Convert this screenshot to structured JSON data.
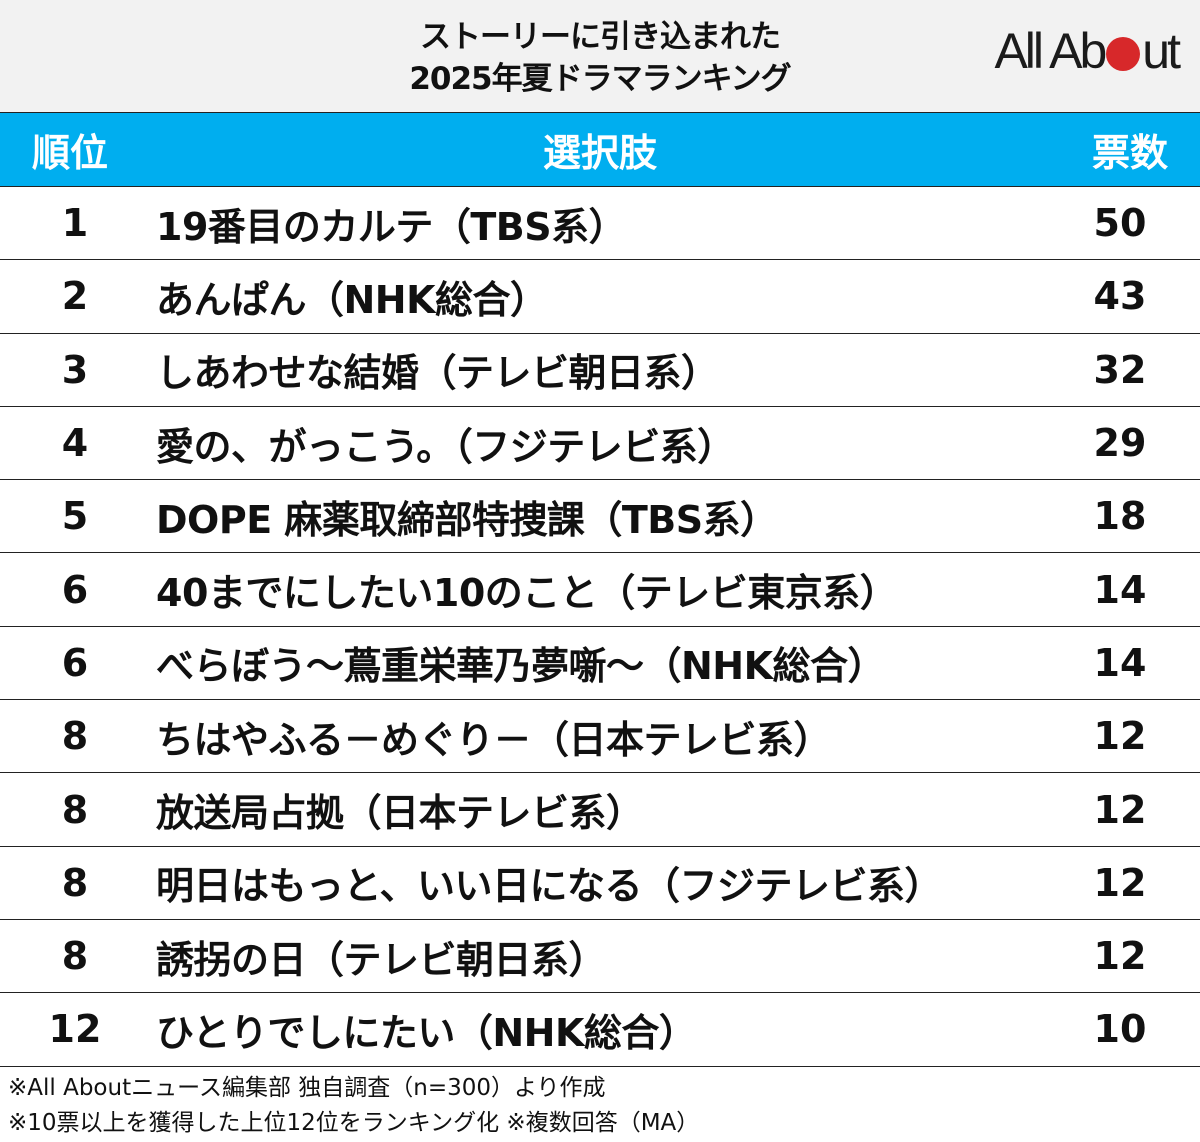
{
  "header": {
    "title_line1": "ストーリーに引き込まれた",
    "title_line2": "2025年夏ドラマランキング",
    "logo": {
      "text_before": "All Ab",
      "text_after": "ut",
      "dot_color": "#d7282a"
    }
  },
  "colors": {
    "title_band_bg": "#f2f2f2",
    "header_row_bg": "#00aeef",
    "header_row_text": "#ffffff",
    "border": "#222222",
    "text": "#111111"
  },
  "table": {
    "columns": {
      "rank": "順位",
      "name": "選択肢",
      "votes": "票数"
    },
    "rows": [
      {
        "rank": "1",
        "name": "19番目のカルテ（TBS系）",
        "votes": "50"
      },
      {
        "rank": "2",
        "name": "あんぱん（NHK総合）",
        "votes": "43"
      },
      {
        "rank": "3",
        "name": "しあわせな結婚（テレビ朝日系）",
        "votes": "32"
      },
      {
        "rank": "4",
        "name": "愛の、がっこう。（フジテレビ系）",
        "votes": "29"
      },
      {
        "rank": "5",
        "name": "DOPE 麻薬取締部特捜課（TBS系）",
        "votes": "18"
      },
      {
        "rank": "6",
        "name": "40までにしたい10のこと（テレビ東京系）",
        "votes": "14"
      },
      {
        "rank": "6",
        "name": "べらぼう～蔦重栄華乃夢噺～（NHK総合）",
        "votes": "14"
      },
      {
        "rank": "8",
        "name": "ちはやふる－めぐり－（日本テレビ系）",
        "votes": "12"
      },
      {
        "rank": "8",
        "name": "放送局占拠（日本テレビ系）",
        "votes": "12"
      },
      {
        "rank": "8",
        "name": "明日はもっと、いい日になる（フジテレビ系）",
        "votes": "12"
      },
      {
        "rank": "8",
        "name": "誘拐の日（テレビ朝日系）",
        "votes": "12"
      },
      {
        "rank": "12",
        "name": "ひとりでしにたい（NHK総合）",
        "votes": "10"
      }
    ]
  },
  "notes": {
    "line1": "※All Aboutニュース編集部 独自調査（n=300）より作成",
    "line2": "※10票以上を獲得した上位12位をランキング化 ※複数回答（MA）"
  },
  "chart_data": {
    "type": "table",
    "title": "ストーリーに引き込まれた 2025年夏ドラマランキング",
    "columns": [
      "順位",
      "選択肢",
      "票数"
    ],
    "categories": [
      "19番目のカルテ（TBS系）",
      "あんぱん（NHK総合）",
      "しあわせな結婚（テレビ朝日系）",
      "愛の、がっこう。（フジテレビ系）",
      "DOPE 麻薬取締部特捜課（TBS系）",
      "40までにしたい10のこと（テレビ東京系）",
      "べらぼう～蔦重栄華乃夢噺～（NHK総合）",
      "ちはやふる－めぐり－（日本テレビ系）",
      "放送局占拠（日本テレビ系）",
      "明日はもっと、いい日になる（フジテレビ系）",
      "誘拐の日（テレビ朝日系）",
      "ひとりでしにたい（NHK総合）"
    ],
    "ranks": [
      1,
      2,
      3,
      4,
      5,
      6,
      6,
      8,
      8,
      8,
      8,
      12
    ],
    "values": [
      50,
      43,
      32,
      29,
      18,
      14,
      14,
      12,
      12,
      12,
      12,
      10
    ],
    "notes": [
      "※All Aboutニュース編集部 独自調査（n=300）より作成",
      "※10票以上を獲得した上位12位をランキング化 ※複数回答（MA）"
    ]
  }
}
